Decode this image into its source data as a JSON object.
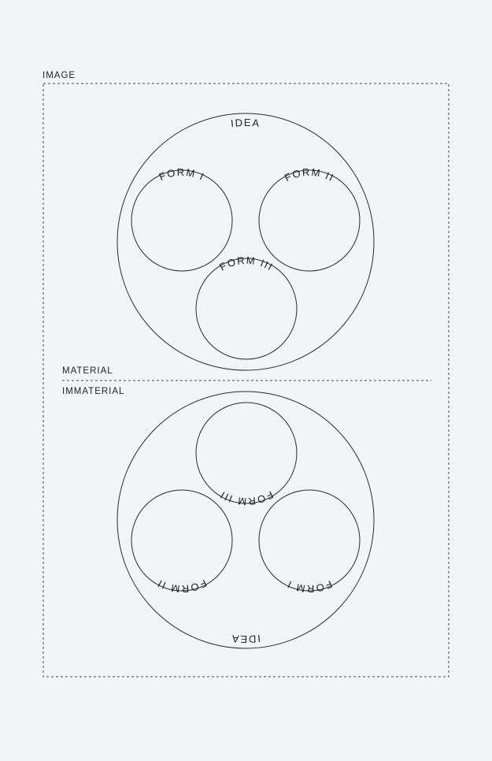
{
  "frame": {
    "label": "IMAGE"
  },
  "divider": {
    "upper_label": "MATERIAL",
    "lower_label": "IMMATERIAL"
  },
  "top_diagram": {
    "outer_label": "IDEA",
    "forms": [
      {
        "label": "FORM I"
      },
      {
        "label": "FORM II"
      },
      {
        "label": "FORM III"
      }
    ]
  },
  "bottom_diagram": {
    "outer_label": "IDEA",
    "forms": [
      {
        "label": "FORM I"
      },
      {
        "label": "FORM II"
      },
      {
        "label": "FORM III"
      }
    ]
  },
  "colors": {
    "background": "#f2f5f8",
    "stroke": "#2a2a2a",
    "text": "#1f1f1f"
  }
}
